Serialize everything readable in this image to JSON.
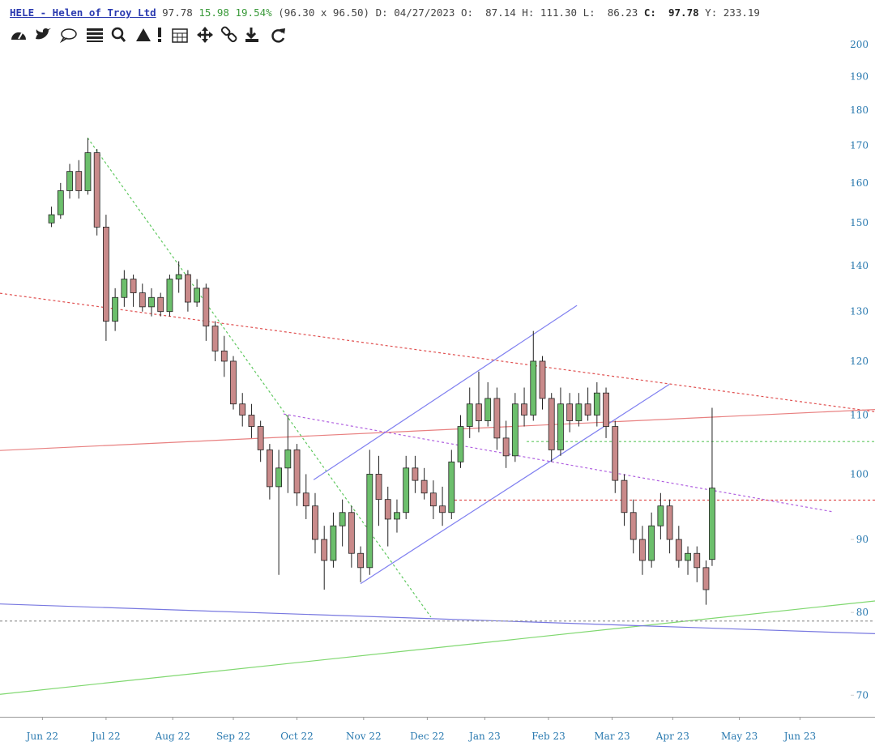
{
  "header": {
    "symbol": "HELE - Helen of Troy Ltd",
    "last": "97.78",
    "change": "15.98",
    "change_pct": "19.54%",
    "bid_ask": "(96.30 x 96.50)",
    "date_label": "D:",
    "date": "04/27/2023",
    "open_label": "O:",
    "open": "87.14",
    "high_label": "H:",
    "high": "111.30",
    "low_label": "L:",
    "low": "86.23",
    "close_label": "C:",
    "close": "97.78",
    "y_label": "Y:",
    "y": "233.19"
  },
  "chart_data": {
    "type": "candlestick",
    "log_scale": true,
    "up_color": "#6cbf6c",
    "down_color": "#c98a8a",
    "axis_color": "#2a7ab0",
    "xlim": [
      0,
      281
    ],
    "ylim": [
      67.6,
      204
    ],
    "xticks": [
      {
        "value": 14,
        "label": "Jun 22"
      },
      {
        "value": 35,
        "label": "Jul 22"
      },
      {
        "value": 57,
        "label": "Aug 22"
      },
      {
        "value": 77,
        "label": "Sep 22"
      },
      {
        "value": 98,
        "label": "Oct 22"
      },
      {
        "value": 120,
        "label": "Nov 22"
      },
      {
        "value": 141,
        "label": "Dec 22"
      },
      {
        "value": 160,
        "label": "Jan 23"
      },
      {
        "value": 181,
        "label": "Feb 23"
      },
      {
        "value": 202,
        "label": "Mar 23"
      },
      {
        "value": 222,
        "label": "Apr 23"
      },
      {
        "value": 244,
        "label": "May 23"
      },
      {
        "value": 264,
        "label": "Jun 23"
      }
    ],
    "yticks": [
      70,
      80,
      90,
      100,
      110,
      120,
      130,
      140,
      150,
      160,
      170,
      180,
      190,
      200
    ],
    "x": [
      17,
      20,
      23,
      26,
      29,
      32,
      35,
      38,
      41,
      44,
      47,
      50,
      53,
      56,
      59,
      62,
      65,
      68,
      71,
      74,
      77,
      80,
      83,
      86,
      89,
      92,
      95,
      98,
      101,
      104,
      107,
      110,
      113,
      116,
      119,
      122,
      125,
      128,
      131,
      134,
      137,
      140,
      143,
      146,
      149,
      152,
      155,
      158,
      161,
      164,
      167,
      170,
      173,
      176,
      179,
      182,
      185,
      188,
      191,
      194,
      197,
      200,
      203,
      206,
      209,
      212,
      215,
      218,
      221,
      224,
      227,
      230,
      233,
      235
    ],
    "open": [
      150,
      152,
      158,
      163,
      158,
      168,
      149,
      128,
      133,
      137,
      134,
      131,
      133,
      130,
      137,
      138,
      132,
      135,
      127,
      122,
      120,
      112,
      110,
      108,
      104,
      98,
      101,
      104,
      97,
      95,
      90,
      87,
      92,
      94,
      88,
      86,
      100,
      96,
      93,
      94,
      101,
      99,
      97,
      95,
      94,
      102,
      108,
      112,
      109,
      113,
      106,
      103,
      112,
      110,
      120,
      113,
      104,
      112,
      109,
      112,
      110,
      114,
      108,
      99,
      94,
      90,
      87,
      92,
      95,
      90,
      87,
      88,
      86,
      87.14
    ],
    "high": [
      154,
      160,
      165,
      166,
      172,
      169,
      152,
      135,
      139,
      138,
      136,
      135,
      134,
      138,
      141,
      139,
      137,
      136,
      128,
      125,
      121,
      114,
      112,
      109,
      105,
      104,
      110,
      105,
      100,
      97,
      92,
      94,
      96,
      95,
      89,
      104,
      103,
      98,
      96,
      103,
      103,
      101,
      99,
      98,
      104,
      110,
      115,
      118,
      116,
      115,
      109,
      114,
      115,
      126,
      121,
      114,
      115,
      114,
      114,
      115,
      116,
      115,
      109,
      100,
      96,
      92,
      94,
      97,
      96,
      92,
      89,
      89,
      87,
      111.3
    ],
    "low": [
      149,
      151,
      156,
      156,
      157,
      147,
      124,
      126,
      131,
      131,
      130,
      129,
      129,
      129,
      134,
      130,
      131,
      124,
      120,
      117,
      111,
      108,
      106,
      102,
      96,
      85,
      97,
      95,
      93,
      88,
      83,
      86,
      89,
      86,
      84,
      85,
      92,
      89,
      91,
      93,
      97,
      96,
      93,
      92,
      93,
      101,
      106,
      107,
      108,
      104,
      101,
      102,
      108,
      109,
      111,
      102,
      103,
      107,
      108,
      109,
      108,
      106,
      97,
      92,
      88,
      85,
      86,
      90,
      88,
      86,
      85,
      84,
      81,
      86.23
    ],
    "close": [
      152,
      158,
      163,
      158,
      168,
      149,
      128,
      133,
      137,
      134,
      131,
      133,
      130,
      137,
      138,
      132,
      135,
      127,
      122,
      120,
      112,
      110,
      108,
      104,
      98,
      101,
      104,
      97,
      95,
      90,
      87,
      92,
      94,
      88,
      86,
      100,
      96,
      93,
      94,
      101,
      99,
      97,
      95,
      94,
      102,
      108,
      112,
      109,
      113,
      106,
      103,
      112,
      110,
      120,
      113,
      104,
      112,
      109,
      112,
      110,
      114,
      108,
      99,
      94,
      90,
      87,
      92,
      95,
      90,
      87,
      88,
      86,
      83,
      97.78
    ],
    "trendlines": [
      {
        "color": "#e05050",
        "dash": true,
        "points": [
          [
            0,
            133.9
          ],
          [
            288.8,
            110.6
          ]
        ]
      },
      {
        "color": "#e88080",
        "dash": false,
        "points": [
          [
            0,
            103.9
          ],
          [
            288.8,
            111.0
          ]
        ]
      },
      {
        "color": "#80d870",
        "dash": false,
        "points": [
          [
            0,
            70.1
          ],
          [
            288.8,
            81.5
          ]
        ]
      },
      {
        "color": "#7878e0",
        "dash": false,
        "points": [
          [
            0,
            81.1
          ],
          [
            288.8,
            77.3
          ]
        ]
      },
      {
        "color": "#60c860",
        "dash": true,
        "points": [
          [
            28.9,
            172.1
          ],
          [
            142.2,
            79.4
          ]
        ]
      },
      {
        "color": "#8080f0",
        "dash": false,
        "points": [
          [
            103.5,
            99.1
          ],
          [
            190.4,
            131.3
          ]
        ]
      },
      {
        "color": "#8080f0",
        "dash": false,
        "points": [
          [
            119,
            83.8
          ],
          [
            220.9,
            115.6
          ]
        ]
      },
      {
        "color": "#b060e0",
        "dash": true,
        "points": [
          [
            93.6,
            110.2
          ],
          [
            274.9,
            94.1
          ]
        ]
      },
      {
        "color": "#60c860",
        "dash": true,
        "points": [
          [
            173.8,
            105.4
          ],
          [
            288.8,
            105.4
          ]
        ]
      },
      {
        "color": "#e05050",
        "dash": true,
        "points": [
          [
            148.4,
            95.9
          ],
          [
            288.8,
            95.9
          ]
        ]
      },
      {
        "color": "#999999",
        "dash": true,
        "points": [
          [
            0,
            78.9
          ],
          [
            288.8,
            78.9
          ]
        ]
      }
    ]
  }
}
